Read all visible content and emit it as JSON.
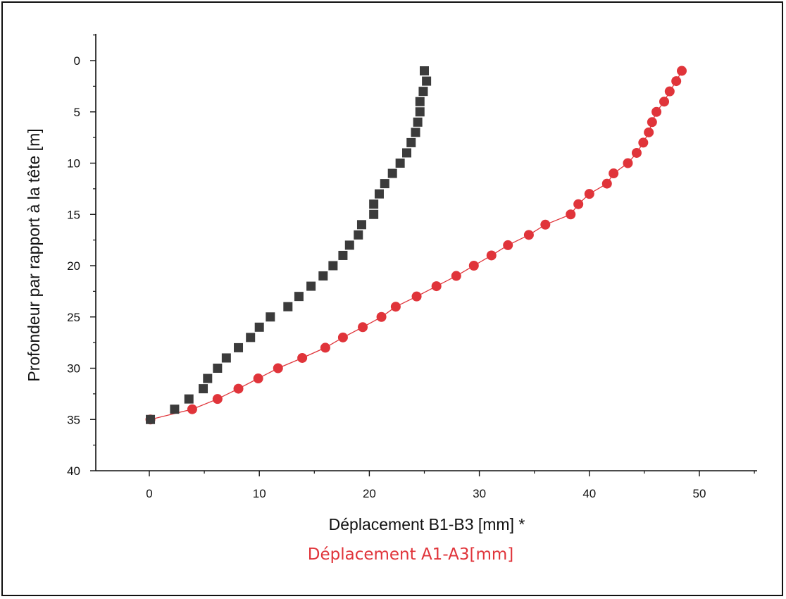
{
  "chart_data": {
    "type": "scatter",
    "xlabel": "Déplacement B1-B3 [mm] *",
    "xlabel2": "Déplacement A1-A3[mm]",
    "ylabel": "Profondeur par rapport à la tête [m]",
    "xlim": [
      -5,
      55
    ],
    "ylim": [
      0,
      40
    ],
    "y_inverted": true,
    "xticks": [
      0,
      10,
      20,
      30,
      40,
      50
    ],
    "yticks": [
      0,
      5,
      10,
      15,
      20,
      25,
      30,
      35,
      40
    ],
    "grid": false,
    "series": [
      {
        "color": "#3b3b3b",
        "marker": "square",
        "line": false,
        "points": [
          [
            25.0,
            1
          ],
          [
            25.2,
            2
          ],
          [
            24.9,
            3
          ],
          [
            24.6,
            4
          ],
          [
            24.6,
            5
          ],
          [
            24.4,
            6
          ],
          [
            24.2,
            7
          ],
          [
            23.8,
            8
          ],
          [
            23.4,
            9
          ],
          [
            22.8,
            10
          ],
          [
            22.1,
            11
          ],
          [
            21.4,
            12
          ],
          [
            20.9,
            13
          ],
          [
            20.4,
            14
          ],
          [
            20.4,
            15
          ],
          [
            19.3,
            16
          ],
          [
            19.0,
            17
          ],
          [
            18.2,
            18
          ],
          [
            17.6,
            19
          ],
          [
            16.7,
            20
          ],
          [
            15.8,
            21
          ],
          [
            14.7,
            22
          ],
          [
            13.6,
            23
          ],
          [
            12.6,
            24
          ],
          [
            11.0,
            25
          ],
          [
            10.0,
            26
          ],
          [
            9.2,
            27
          ],
          [
            8.1,
            28
          ],
          [
            7.0,
            29
          ],
          [
            6.2,
            30
          ],
          [
            5.3,
            31
          ],
          [
            4.9,
            32
          ],
          [
            3.6,
            33
          ],
          [
            2.3,
            34
          ],
          [
            0.1,
            35
          ]
        ]
      },
      {
        "color": "#e0343a",
        "marker": "circle",
        "line": true,
        "points": [
          [
            48.4,
            1
          ],
          [
            47.9,
            2
          ],
          [
            47.3,
            3
          ],
          [
            46.8,
            4
          ],
          [
            46.1,
            5
          ],
          [
            45.7,
            6
          ],
          [
            45.4,
            7
          ],
          [
            44.9,
            8
          ],
          [
            44.3,
            9
          ],
          [
            43.5,
            10
          ],
          [
            42.2,
            11
          ],
          [
            41.6,
            12
          ],
          [
            40.0,
            13
          ],
          [
            39.0,
            14
          ],
          [
            38.3,
            15
          ],
          [
            36.0,
            16
          ],
          [
            34.5,
            17
          ],
          [
            32.6,
            18
          ],
          [
            31.1,
            19
          ],
          [
            29.5,
            20
          ],
          [
            27.9,
            21
          ],
          [
            26.1,
            22
          ],
          [
            24.3,
            23
          ],
          [
            22.4,
            24
          ],
          [
            21.1,
            25
          ],
          [
            19.4,
            26
          ],
          [
            17.6,
            27
          ],
          [
            16.0,
            28
          ],
          [
            13.9,
            29
          ],
          [
            11.7,
            30
          ],
          [
            9.9,
            31
          ],
          [
            8.1,
            32
          ],
          [
            6.2,
            33
          ],
          [
            3.9,
            34
          ],
          [
            0.1,
            35
          ]
        ]
      }
    ]
  }
}
